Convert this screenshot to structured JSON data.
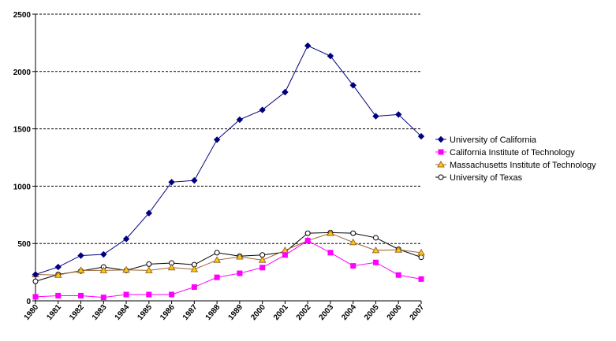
{
  "chart_data": {
    "type": "line",
    "title": "",
    "xlabel": "",
    "ylabel": "",
    "x": [
      "1980",
      "1981",
      "1982",
      "1983",
      "1984",
      "1985",
      "1986",
      "1987",
      "1988",
      "1989",
      "2000",
      "2001",
      "2002",
      "2003",
      "2004",
      "2005",
      "2006",
      "2007"
    ],
    "ylim": [
      0,
      2500
    ],
    "yticks": [
      0,
      500,
      1000,
      1500,
      2000,
      2500
    ],
    "grid": "horizontal dashed",
    "legend_position": "right",
    "series": [
      {
        "name": "University of California",
        "color": "#00007f",
        "marker": "diamond-filled",
        "values": [
          230,
          295,
          395,
          405,
          540,
          765,
          1035,
          1050,
          1405,
          1580,
          1665,
          1820,
          2225,
          2135,
          1880,
          1610,
          1625,
          1435
        ]
      },
      {
        "name": "California Institute of Technology",
        "color": "#ff00ff",
        "marker": "square-filled",
        "values": [
          35,
          45,
          45,
          30,
          55,
          55,
          55,
          120,
          205,
          240,
          290,
          400,
          525,
          420,
          305,
          335,
          225,
          190
        ]
      },
      {
        "name": "Massachusetts Institute of Technology",
        "color": "#996633",
        "marker": "triangle-open",
        "marker_fill": "#ffcc00",
        "values": [
          230,
          225,
          265,
          265,
          270,
          265,
          290,
          275,
          355,
          385,
          355,
          440,
          525,
          590,
          510,
          440,
          445,
          420
        ]
      },
      {
        "name": "University of Texas",
        "color": "#000000",
        "marker": "circle-open",
        "values": [
          170,
          230,
          260,
          295,
          265,
          320,
          330,
          315,
          420,
          390,
          400,
          425,
          590,
          595,
          590,
          550,
          450,
          380
        ]
      }
    ]
  }
}
